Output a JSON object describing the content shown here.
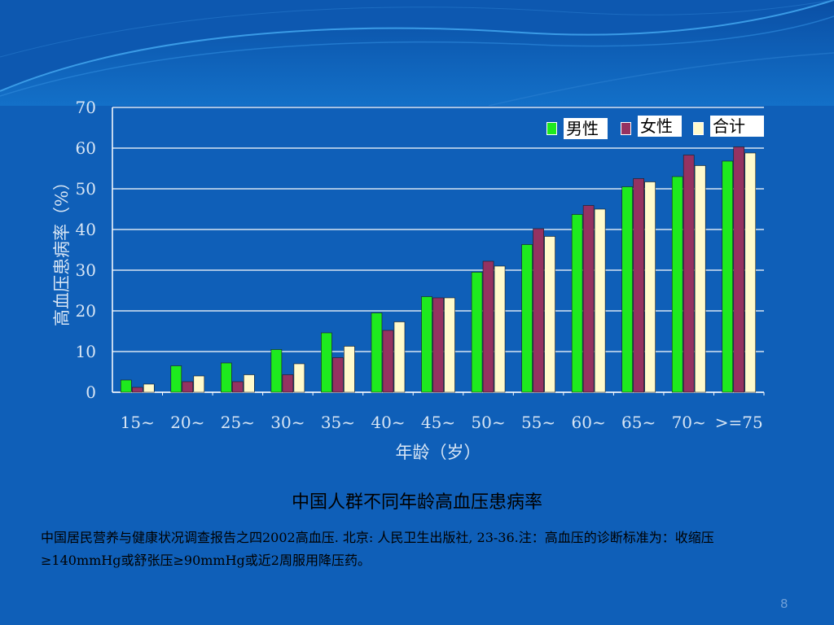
{
  "colors": {
    "background": "#0f5fb8",
    "axis_text": "#d8e6f5",
    "male": "#1eea1e",
    "female": "#953261",
    "total": "#fffacc"
  },
  "chart_data": {
    "type": "bar",
    "xlabel": "年龄（岁）",
    "ylabel": "高血压患病率（%）",
    "ylim": [
      0,
      70
    ],
    "yticks": [
      0,
      10,
      20,
      30,
      40,
      50,
      60,
      70
    ],
    "grid": true,
    "legend_position": "top-right",
    "categories": [
      "15~",
      "20~",
      "25~",
      "30~",
      "35~",
      "40~",
      "45~",
      "50~",
      "55~",
      "60~",
      "65~",
      "70~",
      ">=75"
    ],
    "series": [
      {
        "name": "男性",
        "color": "#1eea1e",
        "values": [
          3,
          6.5,
          7.2,
          10.5,
          14.6,
          19.5,
          23.5,
          29.5,
          36.3,
          43.7,
          50.5,
          53,
          56.8
        ]
      },
      {
        "name": "女性",
        "color": "#953261",
        "values": [
          1.2,
          2.6,
          2.6,
          4.3,
          8.5,
          15.2,
          23.2,
          32.2,
          40.2,
          45.9,
          52.5,
          58.3,
          60.3
        ]
      },
      {
        "name": "合计",
        "color": "#fffacc",
        "values": [
          2,
          4,
          4.3,
          7,
          11.3,
          17.3,
          23.2,
          31,
          38.3,
          45,
          51.7,
          55.7,
          58.8
        ]
      }
    ]
  },
  "caption": "中国人群不同年龄高血压患病率",
  "source_note": "中国居民营养与健康状况调查报告之四2002高血压. 北京: 人民卫生出版社, 23-36.注：高血压的诊断标准为：收缩压≥140mmHg或舒张压≥90mmHg或近2周服用降压药。",
  "page_number": "8"
}
